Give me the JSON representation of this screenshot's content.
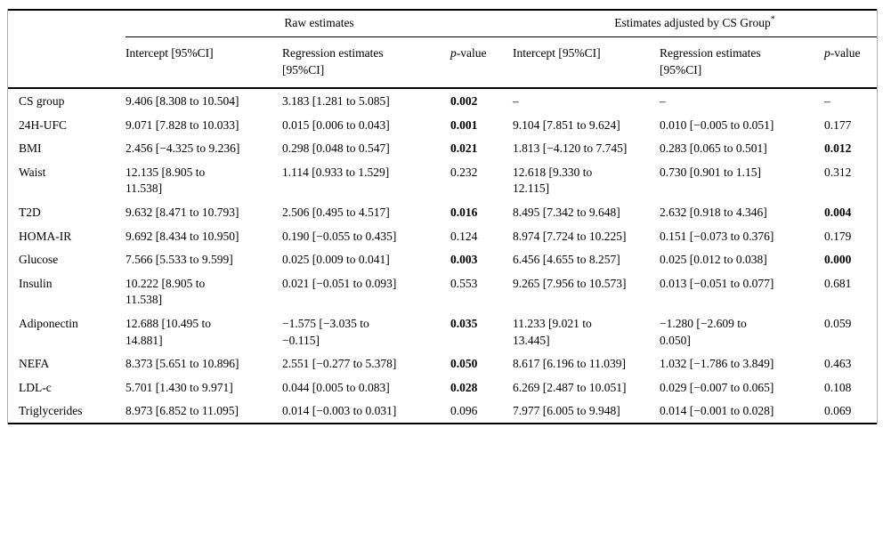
{
  "table": {
    "group_headers": {
      "raw": "Raw estimates",
      "adjusted": "Estimates adjusted by CS Group",
      "adjusted_superscript": "*"
    },
    "column_headers": {
      "intercept": "Intercept [95%CI]",
      "regression": "Regression estimates [95%CI]",
      "p_letter": "p",
      "p_rest": "-value"
    },
    "rows": [
      {
        "label": "CS group",
        "raw_intercept": "9.406 [8.308 to 10.504]",
        "raw_regression": "3.183 [1.281 to 5.085]",
        "raw_p": "0.002",
        "raw_p_bold": true,
        "adj_intercept": "–",
        "adj_regression": "–",
        "adj_p": "–",
        "adj_p_bold": false
      },
      {
        "label": "24H-UFC",
        "raw_intercept": "9.071 [7.828 to 10.033]",
        "raw_regression": "0.015 [0.006 to 0.043]",
        "raw_p": "0.001",
        "raw_p_bold": true,
        "adj_intercept": "9.104 [7.851 to 9.624]",
        "adj_regression": "0.010 [−0.005 to 0.051]",
        "adj_p": "0.177",
        "adj_p_bold": false
      },
      {
        "label": "BMI",
        "raw_intercept": "2.456 [−4.325 to 9.236]",
        "raw_regression": "0.298 [0.048 to 0.547]",
        "raw_p": "0.021",
        "raw_p_bold": true,
        "adj_intercept": "1.813 [−4.120 to 7.745]",
        "adj_regression": "0.283 [0.065 to 0.501]",
        "adj_p": "0.012",
        "adj_p_bold": true
      },
      {
        "label": "Waist",
        "raw_intercept": "12.135 [8.905 to 11.538]",
        "raw_regression": "1.114 [0.933 to 1.529]",
        "raw_p": "0.232",
        "raw_p_bold": false,
        "adj_intercept": "12.618 [9.330 to 12.115]",
        "adj_regression": "0.730 [0.901 to 1.15]",
        "adj_p": "0.312",
        "adj_p_bold": false
      },
      {
        "label": "T2D",
        "raw_intercept": "9.632 [8.471 to 10.793]",
        "raw_regression": "2.506 [0.495 to 4.517]",
        "raw_p": "0.016",
        "raw_p_bold": true,
        "adj_intercept": "8.495 [7.342 to 9.648]",
        "adj_regression": "2.632 [0.918 to 4.346]",
        "adj_p": "0.004",
        "adj_p_bold": true
      },
      {
        "label": "HOMA-IR",
        "raw_intercept": "9.692 [8.434 to 10.950]",
        "raw_regression": "0.190 [−0.055 to 0.435]",
        "raw_p": "0.124",
        "raw_p_bold": false,
        "adj_intercept": "8.974 [7.724 to 10.225]",
        "adj_regression": "0.151 [−0.073 to 0.376]",
        "adj_p": "0.179",
        "adj_p_bold": false
      },
      {
        "label": "Glucose",
        "raw_intercept": "7.566 [5.533 to 9.599]",
        "raw_regression": "0.025 [0.009 to 0.041]",
        "raw_p": "0.003",
        "raw_p_bold": true,
        "adj_intercept": "6.456 [4.655 to 8.257]",
        "adj_regression": "0.025 [0.012 to 0.038]",
        "adj_p": "0.000",
        "adj_p_bold": true
      },
      {
        "label": "Insulin",
        "raw_intercept": "10.222 [8.905 to 11.538]",
        "raw_regression": "0.021 [−0.051 to 0.093]",
        "raw_p": "0.553",
        "raw_p_bold": false,
        "adj_intercept": "9.265 [7.956 to 10.573]",
        "adj_regression": "0.013 [−0.051 to 0.077]",
        "adj_p": "0.681",
        "adj_p_bold": false
      },
      {
        "label": "Adiponectin",
        "raw_intercept": "12.688 [10.495 to 14.881]",
        "raw_regression": "−1.575 [−3.035 to −0.115]",
        "raw_p": "0.035",
        "raw_p_bold": true,
        "adj_intercept": "11.233 [9.021 to 13.445]",
        "adj_regression": "−1.280 [−2.609 to 0.050]",
        "adj_p": "0.059",
        "adj_p_bold": false
      },
      {
        "label": "NEFA",
        "raw_intercept": "8.373 [5.651 to 10.896]",
        "raw_regression": "2.551 [−0.277 to 5.378]",
        "raw_p": "0.050",
        "raw_p_bold": true,
        "adj_intercept": "8.617 [6.196 to 11.039]",
        "adj_regression": "1.032 [−1.786 to 3.849]",
        "adj_p": "0.463",
        "adj_p_bold": false
      },
      {
        "label": "LDL-c",
        "raw_intercept": "5.701 [1.430 to 9.971]",
        "raw_regression": "0.044 [0.005 to 0.083]",
        "raw_p": "0.028",
        "raw_p_bold": true,
        "adj_intercept": "6.269 [2.487 to 10.051]",
        "adj_regression": "0.029 [−0.007 to 0.065]",
        "adj_p": "0.108",
        "adj_p_bold": false
      },
      {
        "label": "Triglycerides",
        "raw_intercept": "8.973 [6.852 to 11.095]",
        "raw_regression": "0.014 [−0.003 to 0.031]",
        "raw_p": "0.096",
        "raw_p_bold": false,
        "adj_intercept": "7.977 [6.005 to 9.948]",
        "adj_regression": "0.014 [−0.001 to 0.028]",
        "adj_p": "0.069",
        "adj_p_bold": false
      }
    ]
  }
}
